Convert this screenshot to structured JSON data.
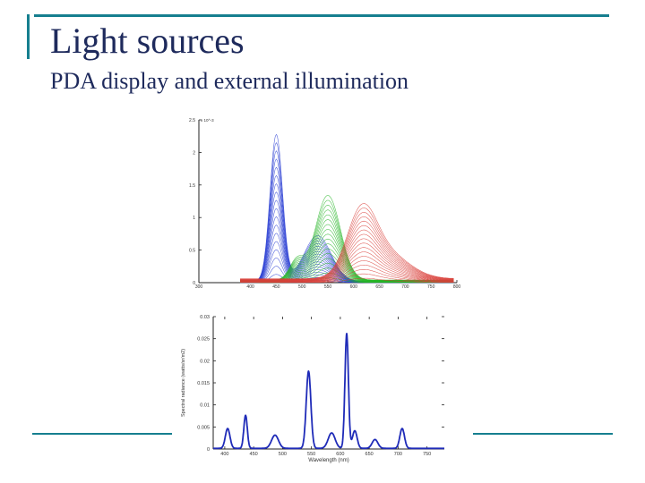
{
  "slide": {
    "title": "Light sources",
    "subtitle": "PDA display and external illumination",
    "accent_color": "#167f8f",
    "title_color": "#1e2a5c"
  },
  "chart_data": [
    {
      "type": "line",
      "title": "",
      "xlabel": "",
      "ylabel": "",
      "y_scale_note": "x 10^-3",
      "xlim": [
        300,
        800
      ],
      "ylim": [
        0,
        0.0025
      ],
      "x_ticks": [
        "300",
        "400",
        "450",
        "500",
        "550",
        "600",
        "650",
        "700",
        "750",
        "800"
      ],
      "y_ticks": [
        "0",
        "0.5",
        "1",
        "1.5",
        "2",
        "2.5"
      ],
      "grid": false,
      "series_groups": [
        {
          "color": "#2b3fd4",
          "peaks": [
            {
              "x": 450,
              "y": 0.00225,
              "width": 12
            },
            {
              "x": 530,
              "y": 0.0007,
              "width": 26
            }
          ]
        },
        {
          "color": "#26b526",
          "peaks": [
            {
              "x": 550,
              "y": 0.0013,
              "width": 24
            },
            {
              "x": 490,
              "y": 0.0003,
              "width": 14
            }
          ]
        },
        {
          "color": "#d9403a",
          "peaks": [
            {
              "x": 615,
              "y": 0.0009,
              "width": 28
            },
            {
              "x": 660,
              "y": 0.0004,
              "width": 45
            }
          ]
        }
      ]
    },
    {
      "type": "line",
      "title": "",
      "xlabel": "Wavelength (nm)",
      "ylabel": "Spectral radiance (watts/sr/m2)",
      "xlim": [
        380,
        780
      ],
      "ylim": [
        0,
        0.03
      ],
      "x_ticks": [
        "400",
        "450",
        "500",
        "550",
        "600",
        "650",
        "700",
        "750"
      ],
      "y_ticks": [
        "0",
        "0.005",
        "0.01",
        "0.015",
        "0.02",
        "0.025",
        "0.03"
      ],
      "grid": false,
      "series": [
        {
          "color": "#1f2bb8",
          "peaks": [
            {
              "x": 405,
              "y": 0.0045,
              "width": 4
            },
            {
              "x": 436,
              "y": 0.0075,
              "width": 3
            },
            {
              "x": 487,
              "y": 0.003,
              "width": 6
            },
            {
              "x": 545,
              "y": 0.0175,
              "width": 4
            },
            {
              "x": 585,
              "y": 0.0035,
              "width": 6
            },
            {
              "x": 611,
              "y": 0.026,
              "width": 3
            },
            {
              "x": 625,
              "y": 0.004,
              "width": 4
            },
            {
              "x": 660,
              "y": 0.002,
              "width": 5
            },
            {
              "x": 707,
              "y": 0.0045,
              "width": 4
            }
          ]
        }
      ]
    }
  ]
}
